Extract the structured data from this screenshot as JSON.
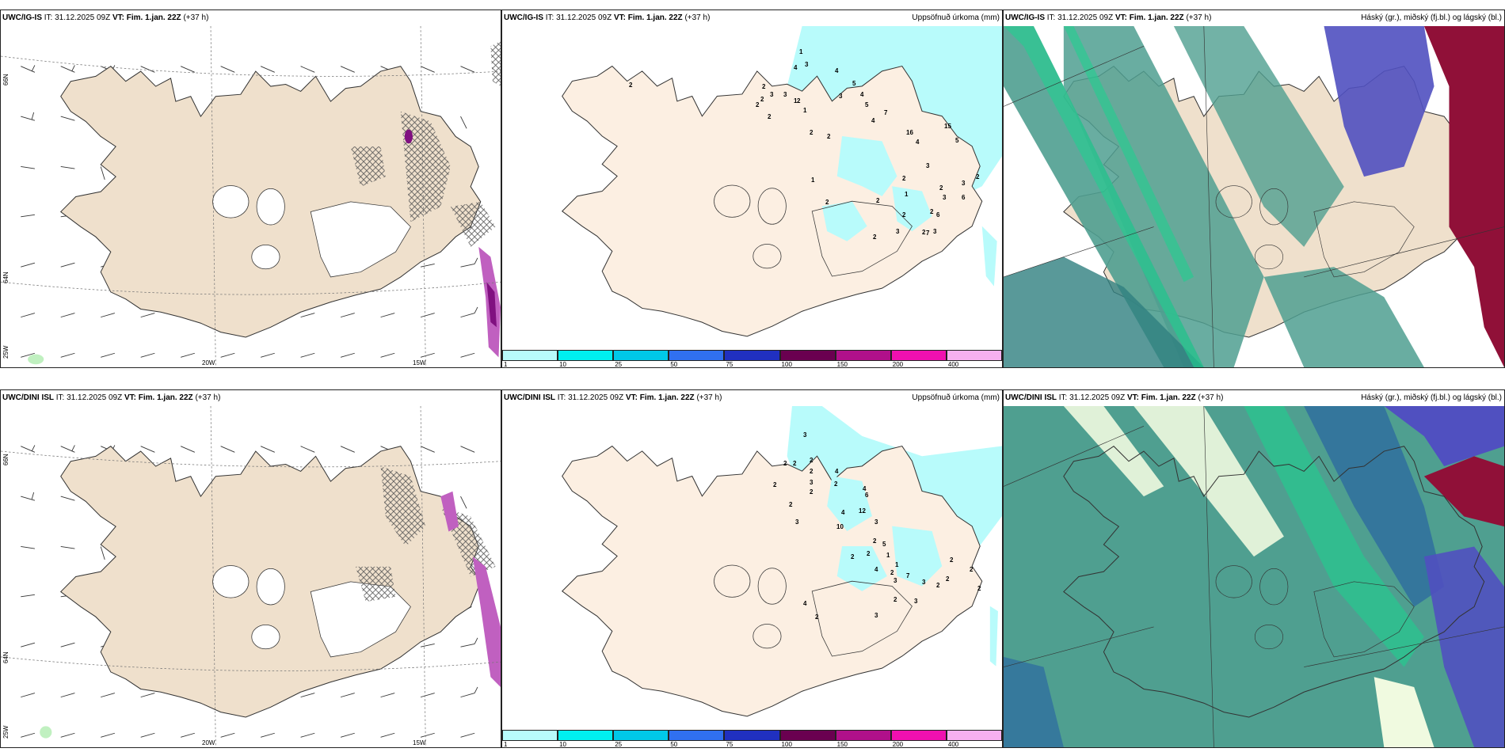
{
  "panels": [
    {
      "model": "UWC/IG-IS",
      "it": "IT: 31.12.2025 09Z",
      "vt_label": "VT:",
      "vt": "Fim. 1.jan. 22Z",
      "lead": "(+37 h)",
      "right_title": ""
    },
    {
      "model": "UWC/IG-IS",
      "it": "IT: 31.12.2025 09Z",
      "vt_label": "VT:",
      "vt": "Fim. 1.jan. 22Z",
      "lead": "(+37 h)",
      "right_title": "Uppsöfnuð úrkoma (mm)"
    },
    {
      "model": "UWC/IG-IS",
      "it": "IT: 31.12.2025 09Z",
      "vt_label": "VT:",
      "vt": "Fim. 1.jan. 22Z",
      "lead": "(+37 h)",
      "right_title": "Háský (gr.), miðský (fj.bl.) og lágský (bl.)"
    },
    {
      "model": "UWC/DINI ISL",
      "it": "IT: 31.12.2025 09Z",
      "vt_label": "VT:",
      "vt": "Fim. 1.jan. 22Z",
      "lead": "(+37 h)",
      "right_title": ""
    },
    {
      "model": "UWC/DINI ISL",
      "it": "IT: 31.12.2025 09Z",
      "vt_label": "VT:",
      "vt": "Fim. 1.jan. 22Z",
      "lead": "(+37 h)",
      "right_title": "Uppsöfnuð úrkoma (mm)"
    },
    {
      "model": "UWC/DINI ISL",
      "it": "IT: 31.12.2025 09Z",
      "vt_label": "VT:",
      "vt": "Fim. 1.jan. 22Z",
      "lead": "(+37 h)",
      "right_title": "Háský (gr.), miðský (fj.bl.) og lágský (bl.)"
    }
  ],
  "grid_labels": {
    "lat66": "66N",
    "lat64": "64N",
    "lon25": "25W",
    "lon20": "20W",
    "lon15": "15W"
  },
  "colorbar": {
    "ticks": [
      "1",
      "10",
      "25",
      "50",
      "75",
      "100",
      "150",
      "200",
      "400"
    ],
    "colors": [
      "#b8fbfb",
      "#00f0f0",
      "#00c8e8",
      "#3070f0",
      "#2030c0",
      "#6a0050",
      "#b0108a",
      "#f010b0",
      "#f6b0f0"
    ]
  },
  "colors": {
    "land": "#f4e4d0",
    "land_precip": "#fcefe2",
    "precip": "#b8fbfb",
    "cloud_low": "#4f9f90",
    "cloud_mid": "#5050c0",
    "cloud_high": "#901038",
    "cloud_edge": "#20d090"
  },
  "precip_top": [
    "1",
    "2",
    "2",
    "3",
    "2",
    "3",
    "2",
    "1",
    "1",
    "2",
    "4",
    "3",
    "4",
    "5",
    "3",
    "2",
    "4",
    "5",
    "4",
    "2",
    "2",
    "7",
    "16",
    "15",
    "5",
    "4",
    "3",
    "2",
    "1",
    "2",
    "7",
    "2",
    "3",
    "3",
    "2",
    "6",
    "6",
    "3",
    "2",
    "2",
    "2",
    "3",
    "2",
    "1",
    "2"
  ],
  "precip_bottom": [
    "3",
    "2",
    "2",
    "2",
    "2",
    "3",
    "2",
    "4",
    "2",
    "4",
    "6",
    "2",
    "2",
    "4",
    "3",
    "10",
    "12",
    "3",
    "2",
    "2",
    "2",
    "4",
    "5",
    "1",
    "1",
    "2",
    "3",
    "7",
    "3",
    "2",
    "2",
    "2",
    "2",
    "2",
    "3",
    "2",
    "3",
    "4",
    "2"
  ]
}
